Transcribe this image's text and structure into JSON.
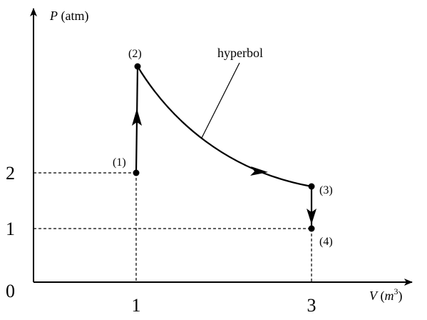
{
  "y_axis": {
    "symbol": "P",
    "unit": "(atm)",
    "ticks": [
      "2",
      "1"
    ]
  },
  "x_axis": {
    "symbol": "V",
    "unit_open": "(",
    "unit": "m",
    "exponent": "3",
    "unit_close": ")",
    "ticks": [
      "1",
      "3"
    ]
  },
  "origin": "0",
  "points": [
    {
      "label": "(1)"
    },
    {
      "label": "(2)"
    },
    {
      "label": "(3)"
    },
    {
      "label": "(4)"
    }
  ],
  "annotation": "hyperbol"
}
